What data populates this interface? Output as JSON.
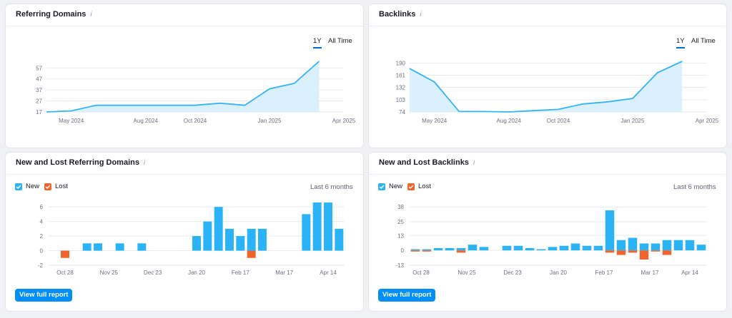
{
  "cards": {
    "rd": {
      "title": "Referring Domains",
      "info": "i",
      "tab_1y": "1Y",
      "tab_all": "All Time"
    },
    "bl": {
      "title": "Backlinks",
      "info": "i",
      "tab_1y": "1Y",
      "tab_all": "All Time"
    },
    "nrd": {
      "title": "New and Lost Referring Domains",
      "info": "i",
      "legend_new": "New",
      "legend_lost": "Lost",
      "period": "Last 6 months",
      "button": "View full report"
    },
    "nbl": {
      "title": "New and Lost Backlinks",
      "info": "i",
      "legend_new": "New",
      "legend_lost": "Lost",
      "period": "Last 6 months",
      "button": "View full report"
    }
  },
  "colors": {
    "new": "#2bb3f7",
    "lost": "#f0652b",
    "line": "#34b3f7",
    "area": "#dbf0fd",
    "grid": "#e8eaef",
    "axis_text": "#6b7080",
    "button": "#008ff8"
  },
  "chart_data": [
    {
      "id": "referring-domains",
      "type": "area",
      "x_ticks": [
        "May 2024",
        "Aug 2024",
        "Oct 2024",
        "Jan 2025",
        "Apr 2025"
      ],
      "y_ticks": [
        17,
        27,
        37,
        47,
        57
      ],
      "ylim": [
        17,
        63
      ],
      "x": [
        "Apr 2024",
        "May 2024",
        "Jun 2024",
        "Jul 2024",
        "Aug 2024",
        "Sep 2024",
        "Oct 2024",
        "Nov 2024",
        "Dec 2024",
        "Jan 2025",
        "Feb 2025",
        "Mar 2025",
        "Apr 2025"
      ],
      "values": [
        17,
        18,
        23,
        23,
        23,
        23,
        23,
        25,
        23,
        38,
        43,
        63,
        null
      ]
    },
    {
      "id": "backlinks",
      "type": "area",
      "x_ticks": [
        "May 2024",
        "Aug 2024",
        "Oct 2024",
        "Jan 2025",
        "Apr 2025"
      ],
      "y_ticks": [
        74,
        103,
        132,
        161,
        190
      ],
      "ylim": [
        74,
        194
      ],
      "x": [
        "Apr 2024",
        "May 2024",
        "Jun 2024",
        "Jul 2024",
        "Aug 2024",
        "Sep 2024",
        "Oct 2024",
        "Nov 2024",
        "Dec 2024",
        "Jan 2025",
        "Feb 2025",
        "Mar 2025",
        "Apr 2025"
      ],
      "values": [
        177,
        145,
        75,
        75,
        74,
        77,
        80,
        93,
        98,
        106,
        167,
        194,
        null
      ]
    },
    {
      "id": "new-lost-referring-domains",
      "type": "bar",
      "x_ticks": [
        "Oct 28",
        "Nov 25",
        "Dec 23",
        "Jan 20",
        "Feb 17",
        "Mar 17",
        "Apr 14"
      ],
      "y_ticks": [
        -2,
        0,
        2,
        4,
        6
      ],
      "ylim": [
        -2,
        6.7
      ],
      "series": [
        {
          "name": "New",
          "values": [
            0,
            0,
            0,
            1,
            1,
            0,
            1,
            0,
            1,
            0,
            0,
            0,
            0,
            2,
            4,
            6,
            3,
            2,
            3,
            3,
            0,
            0,
            0,
            5,
            6.6,
            6.6,
            3
          ]
        },
        {
          "name": "Lost",
          "values": [
            0,
            -1,
            0,
            0,
            0,
            0,
            0,
            0,
            0,
            0,
            0,
            0,
            0,
            0,
            0,
            0,
            0,
            0,
            -1,
            0,
            0,
            0,
            0,
            0,
            0,
            0,
            0
          ]
        }
      ]
    },
    {
      "id": "new-lost-backlinks",
      "type": "bar",
      "x_ticks": [
        "Oct 28",
        "Nov 25",
        "Dec 23",
        "Jan 20",
        "Feb 17",
        "Mar 17",
        "Apr 14"
      ],
      "y_ticks": [
        -13,
        0,
        13,
        25,
        38
      ],
      "ylim": [
        -13,
        40
      ],
      "series": [
        {
          "name": "New",
          "values": [
            1,
            1,
            2,
            2,
            2,
            5,
            3,
            0,
            4,
            4,
            2,
            1,
            3,
            4,
            6,
            4,
            4,
            35,
            9,
            11,
            6,
            6,
            9,
            9,
            9,
            5
          ]
        },
        {
          "name": "Lost",
          "values": [
            -1,
            -1,
            0,
            0,
            -2,
            0,
            0,
            0,
            0,
            0,
            0,
            0,
            0,
            0,
            0,
            0,
            0,
            -2,
            -4,
            -2,
            -8,
            -1,
            -4,
            0,
            0,
            0
          ]
        }
      ]
    }
  ]
}
